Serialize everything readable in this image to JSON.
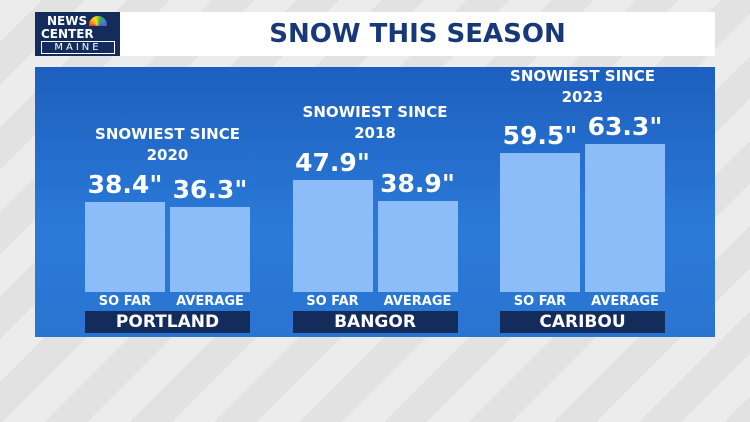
{
  "logo": {
    "line1": "NEWS",
    "line2": "CENTER",
    "line3": "MAINE"
  },
  "chart_data": {
    "type": "bar",
    "title": "SNOW THIS SEASON",
    "categories": [
      "PORTLAND",
      "BANGOR",
      "CARIBOU"
    ],
    "annotations": [
      "SNOWIEST SINCE 2020",
      "SNOWIEST SINCE 2018",
      "SNOWIEST SINCE 2023"
    ],
    "series": [
      {
        "name": "SO FAR",
        "color": "#8dbdf8",
        "values": [
          38.4,
          47.9,
          59.5
        ],
        "value_labels": [
          "38.4\"",
          "47.9\"",
          "59.5\""
        ]
      },
      {
        "name": "AVERAGE",
        "color": "#8dbdf8",
        "values": [
          36.3,
          38.9,
          63.3
        ],
        "value_labels": [
          "36.3\"",
          "38.9\"",
          "63.3\""
        ]
      }
    ]
  }
}
